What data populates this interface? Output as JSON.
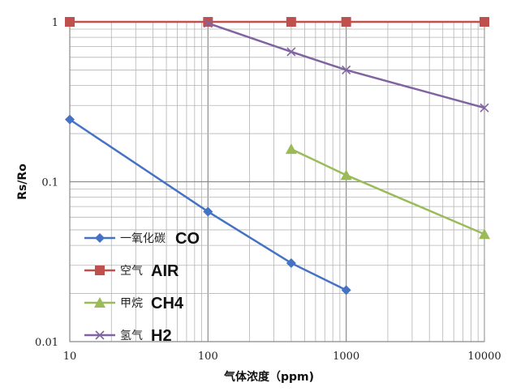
{
  "chart_data": {
    "type": "line",
    "title": "",
    "xlabel": "气体浓度（ppm)",
    "ylabel": "Rs/Ro",
    "xscale": "log",
    "yscale": "log",
    "xlim": [
      10,
      10000
    ],
    "ylim": [
      0.01,
      1
    ],
    "x_ticks": [
      "10",
      "100",
      "1000",
      "10000"
    ],
    "y_ticks": [
      "0.01",
      "0.1",
      "1"
    ],
    "grid": true,
    "legend_position": "bottom-left",
    "series": [
      {
        "name": "一氧化碳",
        "label": "CO",
        "color": "#4472C4",
        "marker": "diamond",
        "points": [
          [
            10,
            0.245
          ],
          [
            100,
            0.065
          ],
          [
            400,
            0.031
          ],
          [
            1000,
            0.021
          ]
        ]
      },
      {
        "name": "空气",
        "label": "AIR",
        "color": "#C0504D",
        "marker": "square",
        "points": [
          [
            10,
            1
          ],
          [
            100,
            1
          ],
          [
            400,
            1
          ],
          [
            1000,
            1
          ],
          [
            10000,
            1
          ]
        ]
      },
      {
        "name": "甲烷",
        "label": "CH4",
        "color": "#9BBB59",
        "marker": "triangle",
        "points": [
          [
            400,
            0.16
          ],
          [
            1000,
            0.11
          ],
          [
            10000,
            0.047
          ]
        ]
      },
      {
        "name": "氢气",
        "label": "H2",
        "color": "#8064A2",
        "marker": "x",
        "points": [
          [
            100,
            0.98
          ],
          [
            400,
            0.65
          ],
          [
            1000,
            0.5
          ],
          [
            10000,
            0.29
          ]
        ]
      }
    ]
  }
}
